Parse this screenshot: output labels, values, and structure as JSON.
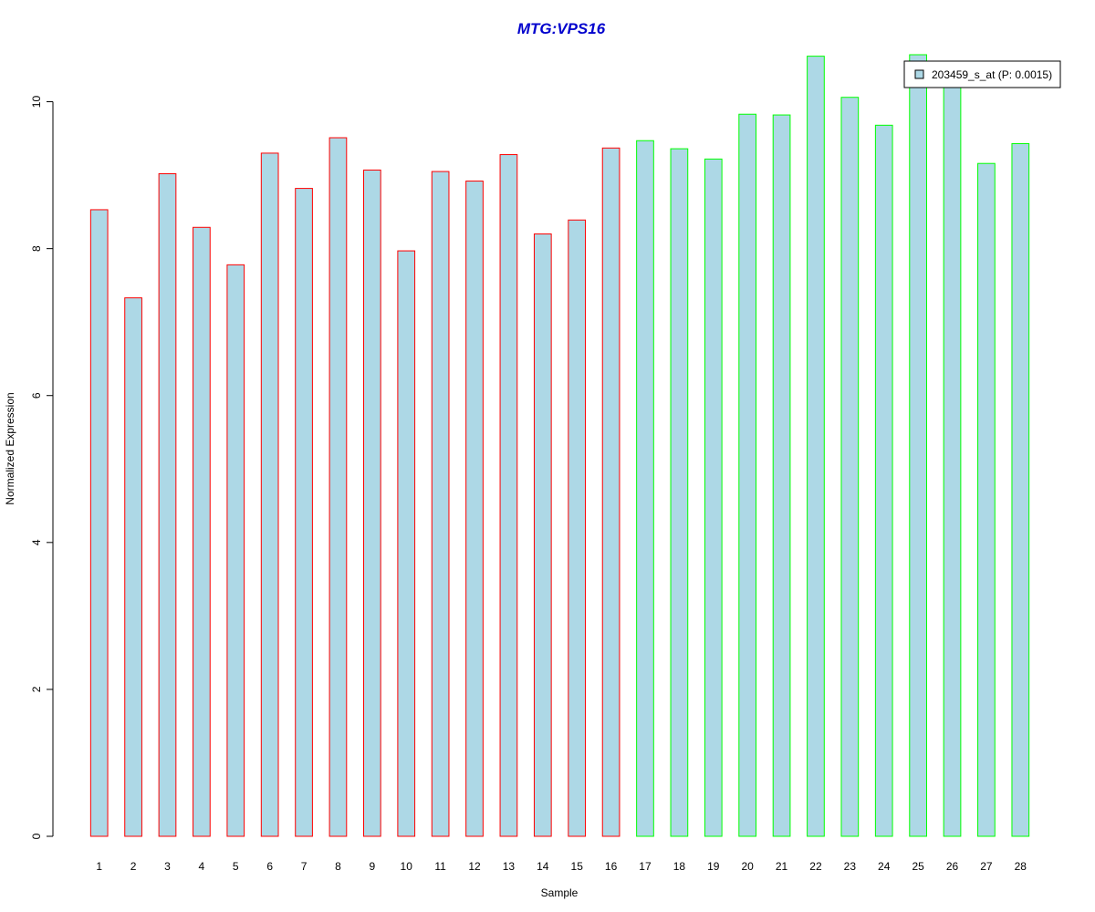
{
  "chart_data": {
    "type": "bar",
    "title": "MTG:VPS16",
    "xlabel": "Sample",
    "ylabel": "Normalized Expression",
    "categories": [
      "1",
      "2",
      "3",
      "4",
      "5",
      "6",
      "7",
      "8",
      "9",
      "10",
      "11",
      "12",
      "13",
      "14",
      "15",
      "16",
      "17",
      "18",
      "19",
      "20",
      "21",
      "22",
      "23",
      "24",
      "25",
      "26",
      "27",
      "28"
    ],
    "series": [
      {
        "name": "203459_s_at (P: 0.0015)",
        "values": [
          8.53,
          7.33,
          9.02,
          8.29,
          7.78,
          9.3,
          8.82,
          9.51,
          9.07,
          7.97,
          9.05,
          8.92,
          9.28,
          8.2,
          8.39,
          9.37,
          9.47,
          9.36,
          9.22,
          9.83,
          9.82,
          10.62,
          10.06,
          9.68,
          10.64,
          10.35,
          9.16,
          9.43
        ]
      }
    ],
    "ylim": [
      0,
      10.64
    ],
    "yticks": [
      "0",
      "2",
      "4",
      "6",
      "8",
      "10"
    ],
    "grid": false,
    "legend_position": "top-right",
    "colors": {
      "fill": "#add8e6",
      "group1_border": "#ff0000",
      "group2_border": "#00ff00",
      "title": "#0000cd",
      "axis": "#000000"
    },
    "group_borders": [
      "group1",
      "group1",
      "group1",
      "group1",
      "group1",
      "group1",
      "group1",
      "group1",
      "group1",
      "group1",
      "group1",
      "group1",
      "group1",
      "group1",
      "group1",
      "group1",
      "group2",
      "group2",
      "group2",
      "group2",
      "group2",
      "group2",
      "group2",
      "group2",
      "group2",
      "group2",
      "group2",
      "group2"
    ]
  }
}
